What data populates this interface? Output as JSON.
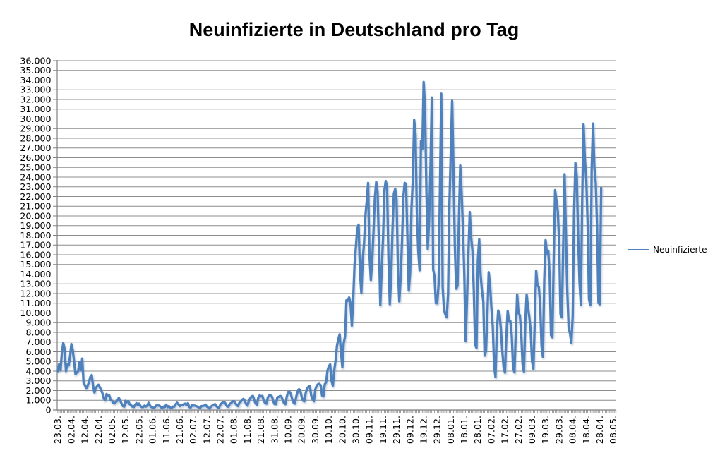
{
  "chart_data": {
    "type": "line",
    "title": "Neuinfizierte in Deutschland pro Tag",
    "grid": true,
    "legend_position": "right-middle",
    "y_min": 0,
    "y_max": 36000,
    "y_step": 1000,
    "y_label_format": "german-thousands-dot",
    "points_per_x_tick": 10,
    "colors": {
      "line": "#4F81BD",
      "grid": "#8C8C8C",
      "axis": "#808080",
      "text": "#000000",
      "background": "#FFFFFF"
    },
    "x_tick_labels": [
      "23.03.",
      "02.04.",
      "12.04.",
      "22.04.",
      "02.05.",
      "12.05.",
      "22.05.",
      "01.06.",
      "11.06.",
      "21.06.",
      "02.07.",
      "12.07.",
      "22.07.",
      "01.08.",
      "11.08.",
      "21.08.",
      "31.08.",
      "10.09.",
      "20.09.",
      "30.09.",
      "10.10.",
      "20.10.",
      "30.10.",
      "09.11.",
      "19.11.",
      "29.11.",
      "09.12.",
      "19.12.",
      "29.12.",
      "08.01.",
      "18.01.",
      "28.01.",
      "07.02.",
      "17.02.",
      "27.02.",
      "09.03.",
      "19.03.",
      "29.03.",
      "08.04.",
      "18.04.",
      "28.04.",
      "08.05."
    ],
    "series": [
      {
        "name": "Neuinfizierte",
        "color": "#4F81BD",
        "values": [
          4000,
          4750,
          4100,
          5900,
          6900,
          6300,
          4000,
          4750,
          4600,
          5500,
          6800,
          6200,
          5000,
          3700,
          3850,
          4000,
          4950,
          4100,
          5300,
          2800,
          2550,
          2200,
          2500,
          2900,
          3400,
          3600,
          2500,
          1800,
          2250,
          2450,
          2600,
          2350,
          2050,
          1700,
          1150,
          1000,
          1650,
          1500,
          1500,
          1000,
          950,
          700,
          680,
          850,
          950,
          1250,
          1000,
          650,
          400,
          350,
          950,
          800,
          900,
          600,
          500,
          350,
          300,
          500,
          700,
          500,
          650,
          400,
          300,
          300,
          450,
          350,
          450,
          750,
          450,
          300,
          250,
          200,
          350,
          500,
          450,
          450,
          300,
          200,
          350,
          300,
          550,
          300,
          400,
          250,
          200,
          350,
          350,
          600,
          750,
          600,
          400,
          550,
          500,
          600,
          650,
          500,
          700,
          300,
          250,
          470,
          450,
          450,
          400,
          350,
          250,
          200,
          400,
          400,
          450,
          550,
          350,
          250,
          150,
          350,
          450,
          550,
          600,
          400,
          250,
          250,
          550,
          700,
          800,
          800,
          600,
          350,
          350,
          650,
          700,
          900,
          900,
          700,
          500,
          400,
          750,
          850,
          1050,
          1150,
          950,
          600,
          450,
          950,
          1200,
          1400,
          1450,
          1000,
          650,
          550,
          1300,
          1500,
          1400,
          1450,
          950,
          700,
          650,
          1300,
          1500,
          1500,
          1400,
          900,
          600,
          600,
          1300,
          1350,
          1450,
          1400,
          1000,
          700,
          600,
          1400,
          1850,
          1900,
          1650,
          1100,
          750,
          650,
          1400,
          1900,
          2150,
          1950,
          1350,
          950,
          900,
          1800,
          2200,
          2400,
          2500,
          1500,
          1100,
          900,
          2100,
          2500,
          2650,
          2700,
          2550,
          1500,
          1400,
          2650,
          2850,
          4050,
          4500,
          4700,
          3000,
          2500,
          4100,
          5100,
          6600,
          7300,
          7800,
          5900,
          4400,
          6900,
          7600,
          11300,
          11250,
          11600,
          11000,
          8700,
          11400,
          15000,
          16800,
          18700,
          19100,
          14200,
          12100,
          15400,
          17200,
          20000,
          21500,
          23400,
          16000,
          13400,
          15300,
          18500,
          21900,
          23500,
          22500,
          16900,
          10800,
          14400,
          17600,
          22600,
          23600,
          23000,
          15700,
          10900,
          13600,
          18600,
          22300,
          22800,
          21700,
          14600,
          11200,
          13600,
          17300,
          22000,
          23400,
          23300,
          17800,
          12300,
          14100,
          20800,
          23700,
          29900,
          28400,
          20200,
          16400,
          14400,
          27700,
          26900,
          33800,
          31300,
          22800,
          16600,
          19500,
          24700,
          32200,
          14500,
          13800,
          11000,
          11000,
          12900,
          22500,
          32600,
          12700,
          10300,
          9850,
          9550,
          11900,
          21200,
          26400,
          31850,
          24700,
          16900,
          12500,
          12800,
          19600,
          25200,
          22400,
          18700,
          13900,
          7100,
          11400,
          16000,
          20400,
          17900,
          16400,
          12300,
          6700,
          6400,
          15500,
          17600,
          14000,
          12300,
          11200,
          5600,
          6100,
          9700,
          14200,
          12900,
          10500,
          8600,
          4550,
          3400,
          8100,
          10250,
          9860,
          8350,
          6100,
          4400,
          3850,
          7550,
          10200,
          9100,
          9160,
          7680,
          4370,
          3880,
          8000,
          11900,
          10000,
          9760,
          7890,
          4730,
          3940,
          9020,
          11900,
          10580,
          9560,
          8100,
          5010,
          4250,
          9150,
          14360,
          12830,
          12670,
          10790,
          6600,
          5480,
          13440,
          17500,
          16030,
          16420,
          13730,
          7710,
          7480,
          15810,
          22660,
          21570,
          20470,
          17180,
          9870,
          9550,
          17050,
          24300,
          18130,
          12200,
          8500,
          7900,
          6890,
          9680,
          20410,
          25460,
          24100,
          17860,
          13250,
          10810,
          21690,
          29430,
          25830,
          23800,
          19190,
          11440,
          10800,
          24900,
          29520,
          25000,
          23400,
          18770,
          11020,
          10900,
          22900
        ]
      }
    ]
  }
}
